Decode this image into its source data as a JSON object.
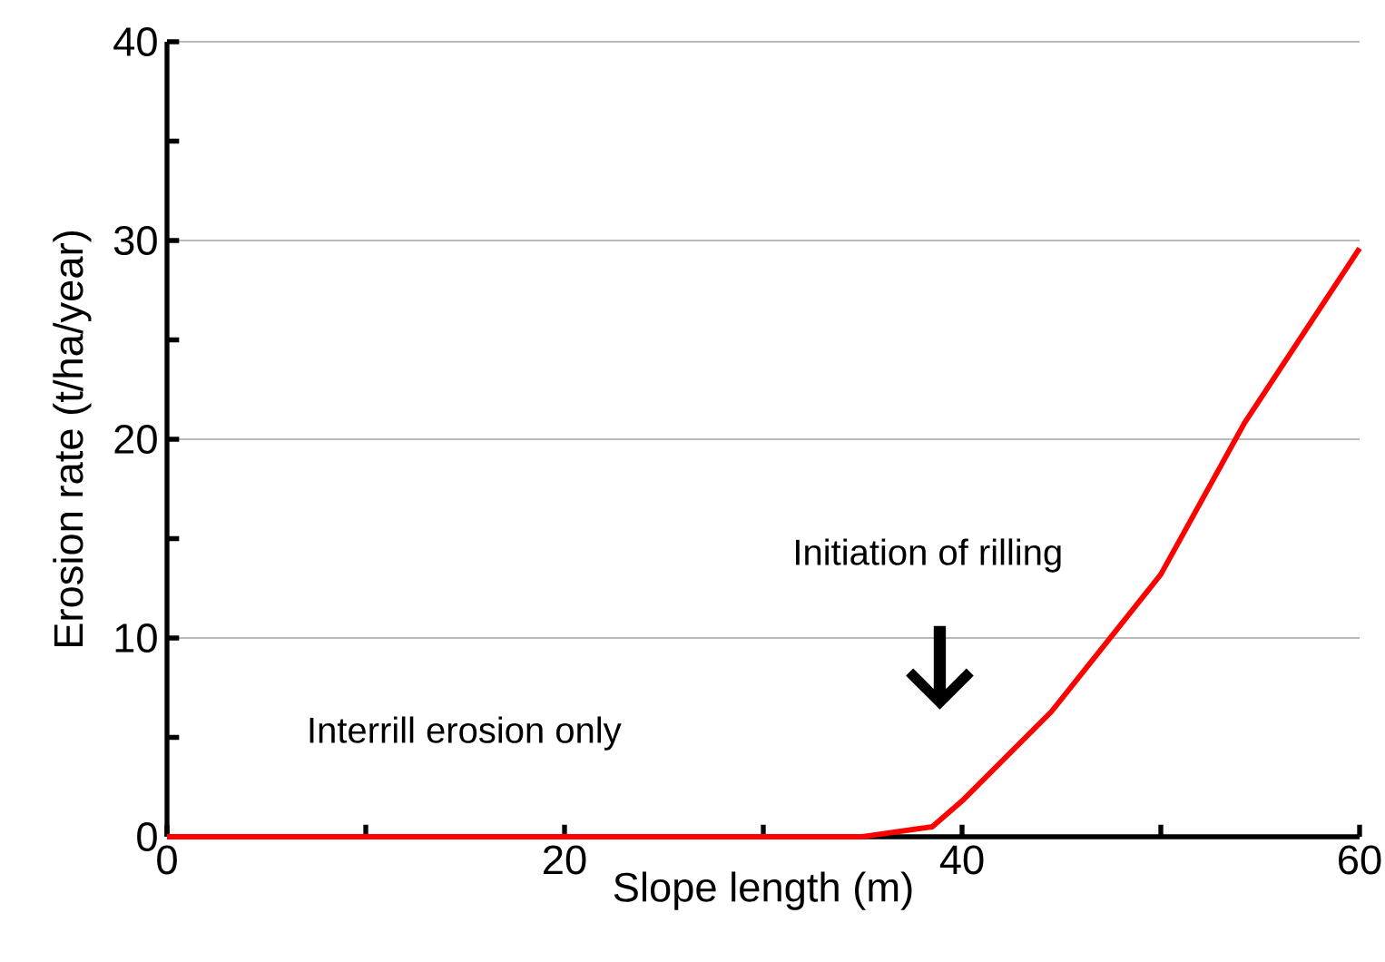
{
  "chart_data": {
    "type": "line",
    "xlabel": "Slope length (m)",
    "ylabel": "Erosion rate (t/ha/year)",
    "x": [
      0,
      35,
      38.5,
      40,
      44.5,
      50,
      54.2,
      60
    ],
    "series": [
      {
        "color": "#ff0000",
        "values": [
          0,
          0,
          0.5,
          1.8,
          6.3,
          13.2,
          20.8,
          29.6
        ]
      }
    ],
    "xlim": [
      0,
      60
    ],
    "ylim": [
      0,
      40
    ],
    "xticks": [
      0,
      {
        "value": 10,
        "label": null
      },
      20,
      {
        "value": 30,
        "label": null
      },
      40,
      {
        "value": 50,
        "label": null
      },
      60
    ],
    "yticks": [
      0,
      {
        "value": 5,
        "label": null
      },
      10,
      {
        "value": 15,
        "label": null
      },
      20,
      {
        "value": 25,
        "label": null
      },
      30,
      {
        "value": 35,
        "label": null
      },
      40
    ],
    "grid": "y",
    "marker": "none",
    "line_style": "solid",
    "annotations": [
      "Initiation of rilling",
      "Interrill erosion only"
    ]
  }
}
